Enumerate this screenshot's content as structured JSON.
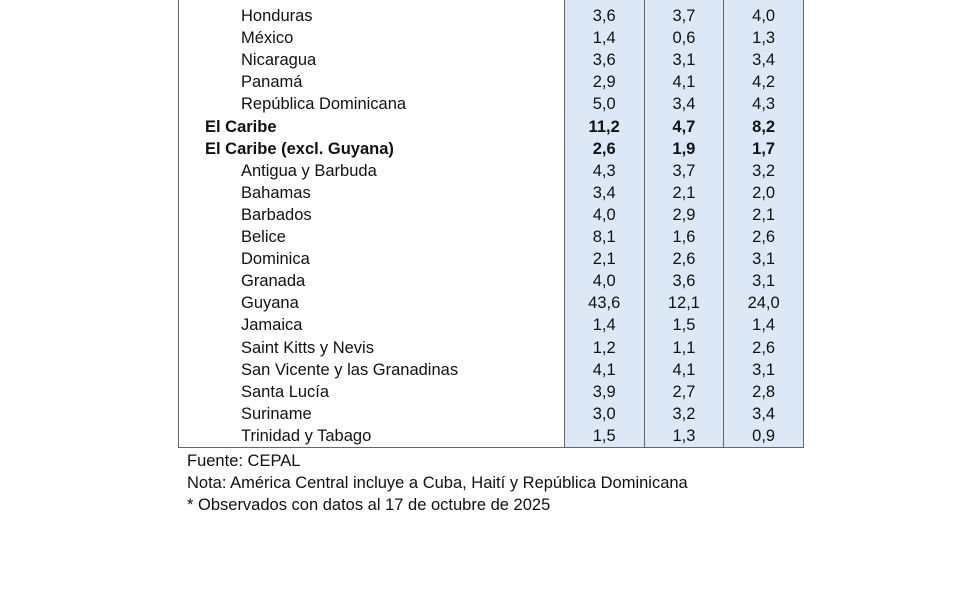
{
  "rows": [
    {
      "name": "",
      "values": [
        "",
        "",
        ""
      ],
      "bold": false
    },
    {
      "name": "Honduras",
      "values": [
        "3,6",
        "3,7",
        "4,0"
      ],
      "bold": false
    },
    {
      "name": "México",
      "values": [
        "1,4",
        "0,6",
        "1,3"
      ],
      "bold": false
    },
    {
      "name": "Nicaragua",
      "values": [
        "3,6",
        "3,1",
        "3,4"
      ],
      "bold": false
    },
    {
      "name": "Panamá",
      "values": [
        "2,9",
        "4,1",
        "4,2"
      ],
      "bold": false
    },
    {
      "name": "República Dominicana",
      "values": [
        "5,0",
        "3,4",
        "4,3"
      ],
      "bold": false
    },
    {
      "name": "El Caribe",
      "values": [
        "11,2",
        "4,7",
        "8,2"
      ],
      "bold": true
    },
    {
      "name": "El Caribe (excl. Guyana)",
      "values": [
        "2,6",
        "1,9",
        "1,7"
      ],
      "bold": true
    },
    {
      "name": "Antigua y Barbuda",
      "values": [
        "4,3",
        "3,7",
        "3,2"
      ],
      "bold": false
    },
    {
      "name": "Bahamas",
      "values": [
        "3,4",
        "2,1",
        "2,0"
      ],
      "bold": false
    },
    {
      "name": "Barbados",
      "values": [
        "4,0",
        "2,9",
        "2,1"
      ],
      "bold": false
    },
    {
      "name": "Belice",
      "values": [
        "8,1",
        "1,6",
        "2,6"
      ],
      "bold": false
    },
    {
      "name": "Dominica",
      "values": [
        "2,1",
        "2,6",
        "3,1"
      ],
      "bold": false
    },
    {
      "name": "Granada",
      "values": [
        "4,0",
        "3,6",
        "3,1"
      ],
      "bold": false
    },
    {
      "name": "Guyana",
      "values": [
        "43,6",
        "12,1",
        "24,0"
      ],
      "bold": false
    },
    {
      "name": "Jamaica",
      "values": [
        "1,4",
        "1,5",
        "1,4"
      ],
      "bold": false
    },
    {
      "name": "Saint Kitts y Nevis",
      "values": [
        "1,2",
        "1,1",
        "2,6"
      ],
      "bold": false
    },
    {
      "name": "San Vicente y las Granadinas",
      "values": [
        "4,1",
        "4,1",
        "3,1"
      ],
      "bold": false
    },
    {
      "name": "Santa Lucía",
      "values": [
        "3,9",
        "2,7",
        "2,8"
      ],
      "bold": false
    },
    {
      "name": "Suriname",
      "values": [
        "3,0",
        "3,2",
        "3,4"
      ],
      "bold": false
    },
    {
      "name": "Trinidad y Tabago",
      "values": [
        "1,5",
        "1,3",
        "0,9"
      ],
      "bold": false
    }
  ],
  "notes": {
    "source": "Fuente: CEPAL",
    "note": "Nota: América Central incluye a Cuba, Haití y República Dominicana",
    "observed": "* Observados con datos al 17 de octubre de 2025"
  }
}
